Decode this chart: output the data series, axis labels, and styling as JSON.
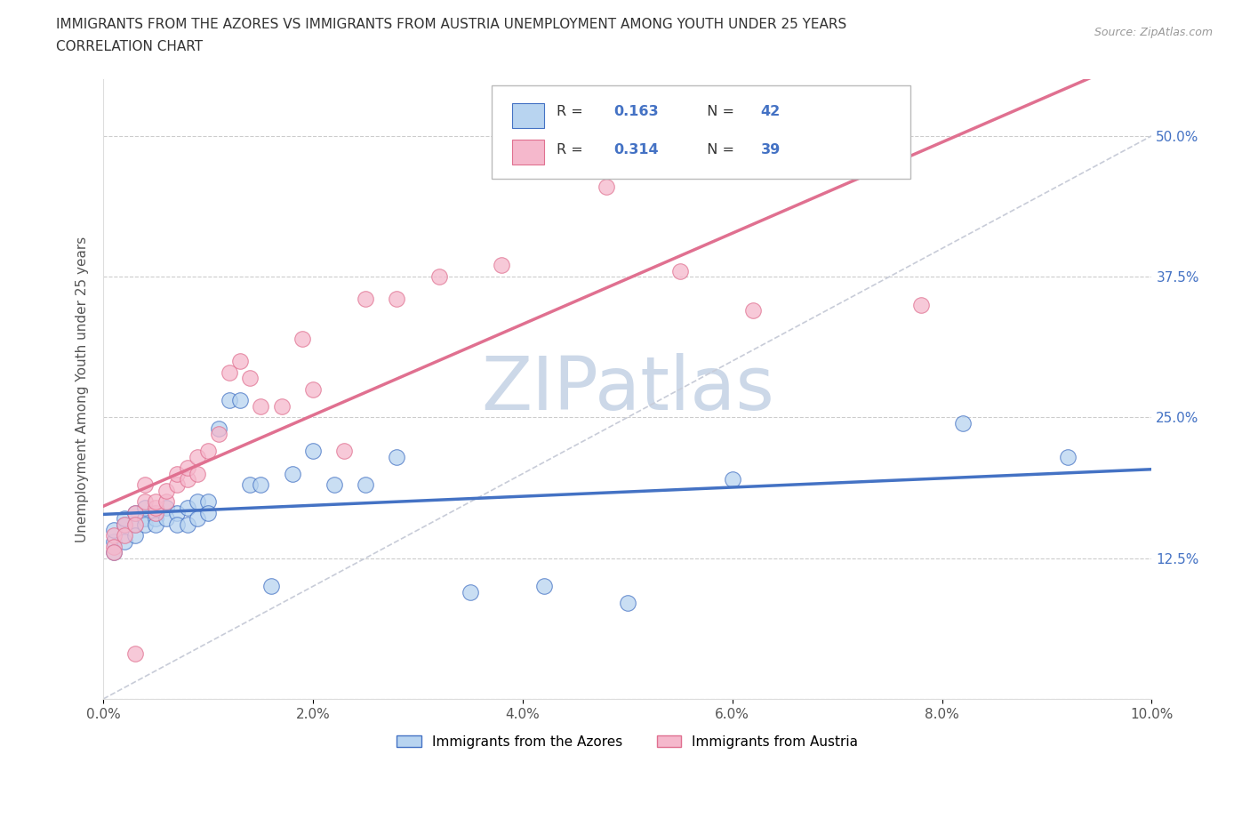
{
  "title_line1": "IMMIGRANTS FROM THE AZORES VS IMMIGRANTS FROM AUSTRIA UNEMPLOYMENT AMONG YOUTH UNDER 25 YEARS",
  "title_line2": "CORRELATION CHART",
  "source_text": "Source: ZipAtlas.com",
  "ylabel": "Unemployment Among Youth under 25 years",
  "xlim": [
    0.0,
    0.1
  ],
  "ylim": [
    0.0,
    0.55
  ],
  "xticks": [
    0.0,
    0.02,
    0.04,
    0.06,
    0.08,
    0.1
  ],
  "xticklabels": [
    "0.0%",
    "2.0%",
    "4.0%",
    "6.0%",
    "8.0%",
    "10.0%"
  ],
  "yticks": [
    0.0,
    0.125,
    0.25,
    0.375,
    0.5
  ],
  "yticklabels": [
    "",
    "12.5%",
    "25.0%",
    "37.5%",
    "50.0%"
  ],
  "color_azores_fill": "#b8d4f0",
  "color_azores_edge": "#4472c4",
  "color_austria_fill": "#f5b8cc",
  "color_austria_edge": "#e07090",
  "color_line_azores": "#4472c4",
  "color_line_austria": "#e07090",
  "color_diag": "#c8ccd8",
  "watermark": "ZIPatlas",
  "watermark_color": "#ccd8e8",
  "legend_blue": "#4472c4",
  "legend_black": "#333333",
  "azores_x": [
    0.001,
    0.001,
    0.001,
    0.002,
    0.002,
    0.002,
    0.003,
    0.003,
    0.003,
    0.004,
    0.004,
    0.004,
    0.005,
    0.005,
    0.005,
    0.006,
    0.006,
    0.007,
    0.007,
    0.008,
    0.008,
    0.009,
    0.009,
    0.01,
    0.01,
    0.011,
    0.012,
    0.013,
    0.014,
    0.015,
    0.016,
    0.018,
    0.02,
    0.022,
    0.025,
    0.028,
    0.035,
    0.042,
    0.05,
    0.06,
    0.082,
    0.092
  ],
  "azores_y": [
    0.14,
    0.15,
    0.13,
    0.155,
    0.16,
    0.14,
    0.155,
    0.165,
    0.145,
    0.16,
    0.155,
    0.17,
    0.16,
    0.165,
    0.155,
    0.17,
    0.16,
    0.165,
    0.155,
    0.17,
    0.155,
    0.175,
    0.16,
    0.175,
    0.165,
    0.24,
    0.265,
    0.265,
    0.19,
    0.19,
    0.1,
    0.2,
    0.22,
    0.19,
    0.19,
    0.215,
    0.095,
    0.1,
    0.085,
    0.195,
    0.245,
    0.215
  ],
  "austria_x": [
    0.001,
    0.001,
    0.001,
    0.002,
    0.002,
    0.003,
    0.003,
    0.004,
    0.004,
    0.005,
    0.005,
    0.005,
    0.006,
    0.006,
    0.007,
    0.007,
    0.008,
    0.008,
    0.009,
    0.009,
    0.01,
    0.011,
    0.012,
    0.013,
    0.014,
    0.015,
    0.017,
    0.019,
    0.02,
    0.023,
    0.025,
    0.028,
    0.032,
    0.038,
    0.048,
    0.055,
    0.062,
    0.078,
    0.003
  ],
  "austria_y": [
    0.145,
    0.135,
    0.13,
    0.155,
    0.145,
    0.165,
    0.155,
    0.175,
    0.19,
    0.165,
    0.17,
    0.175,
    0.175,
    0.185,
    0.19,
    0.2,
    0.195,
    0.205,
    0.2,
    0.215,
    0.22,
    0.235,
    0.29,
    0.3,
    0.285,
    0.26,
    0.26,
    0.32,
    0.275,
    0.22,
    0.355,
    0.355,
    0.375,
    0.385,
    0.455,
    0.38,
    0.345,
    0.35,
    0.04
  ]
}
